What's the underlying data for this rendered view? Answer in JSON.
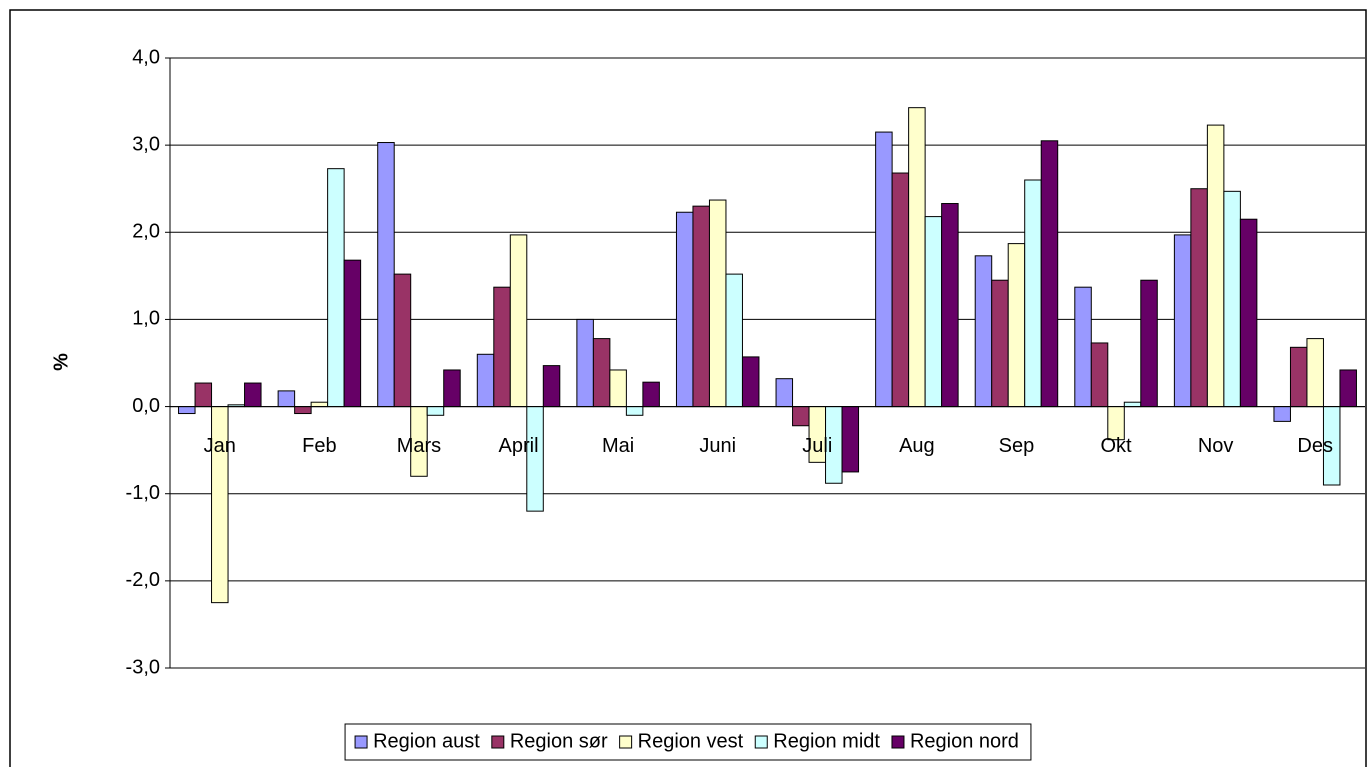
{
  "chart_data": {
    "type": "bar",
    "y_label": "%",
    "categories": [
      "Jan",
      "Feb",
      "Mars",
      "April",
      "Mai",
      "Juni",
      "Juli",
      "Aug",
      "Sep",
      "Okt",
      "Nov",
      "Des"
    ],
    "series": [
      {
        "name": "Region aust",
        "color": "#9999ff",
        "values": [
          -0.08,
          0.18,
          3.03,
          0.6,
          1.0,
          2.23,
          0.32,
          3.15,
          1.73,
          1.37,
          1.97,
          -0.17
        ]
      },
      {
        "name": "Region sør",
        "color": "#993366",
        "values": [
          0.27,
          -0.08,
          1.52,
          1.37,
          0.78,
          2.3,
          -0.22,
          2.68,
          1.45,
          0.73,
          2.5,
          0.68
        ]
      },
      {
        "name": "Region vest",
        "color": "#ffffcc",
        "values": [
          -2.25,
          0.05,
          -0.8,
          1.97,
          0.42,
          2.37,
          -0.64,
          3.43,
          1.87,
          -0.38,
          3.23,
          0.78
        ]
      },
      {
        "name": "Region midt",
        "color": "#ccffff",
        "values": [
          0.02,
          2.73,
          -0.1,
          -1.2,
          -0.1,
          1.52,
          -0.88,
          2.18,
          2.6,
          0.05,
          2.47,
          -0.9
        ]
      },
      {
        "name": "Region nord",
        "color": "#660066",
        "values": [
          0.27,
          1.68,
          0.42,
          0.47,
          0.28,
          0.57,
          -0.75,
          2.33,
          3.05,
          1.45,
          2.15,
          0.42
        ]
      }
    ],
    "ylim": [
      -3,
      4
    ],
    "yticks": [
      {
        "value": -3,
        "label": "-3,0"
      },
      {
        "value": -2,
        "label": "-2,0"
      },
      {
        "value": -1,
        "label": "-1,0"
      },
      {
        "value": 0,
        "label": "0,0"
      },
      {
        "value": 1,
        "label": "1,0"
      },
      {
        "value": 2,
        "label": "2,0"
      },
      {
        "value": 3,
        "label": "3,0"
      },
      {
        "value": 4,
        "label": "4,0"
      }
    ],
    "grid": true,
    "legend": "bottom"
  }
}
